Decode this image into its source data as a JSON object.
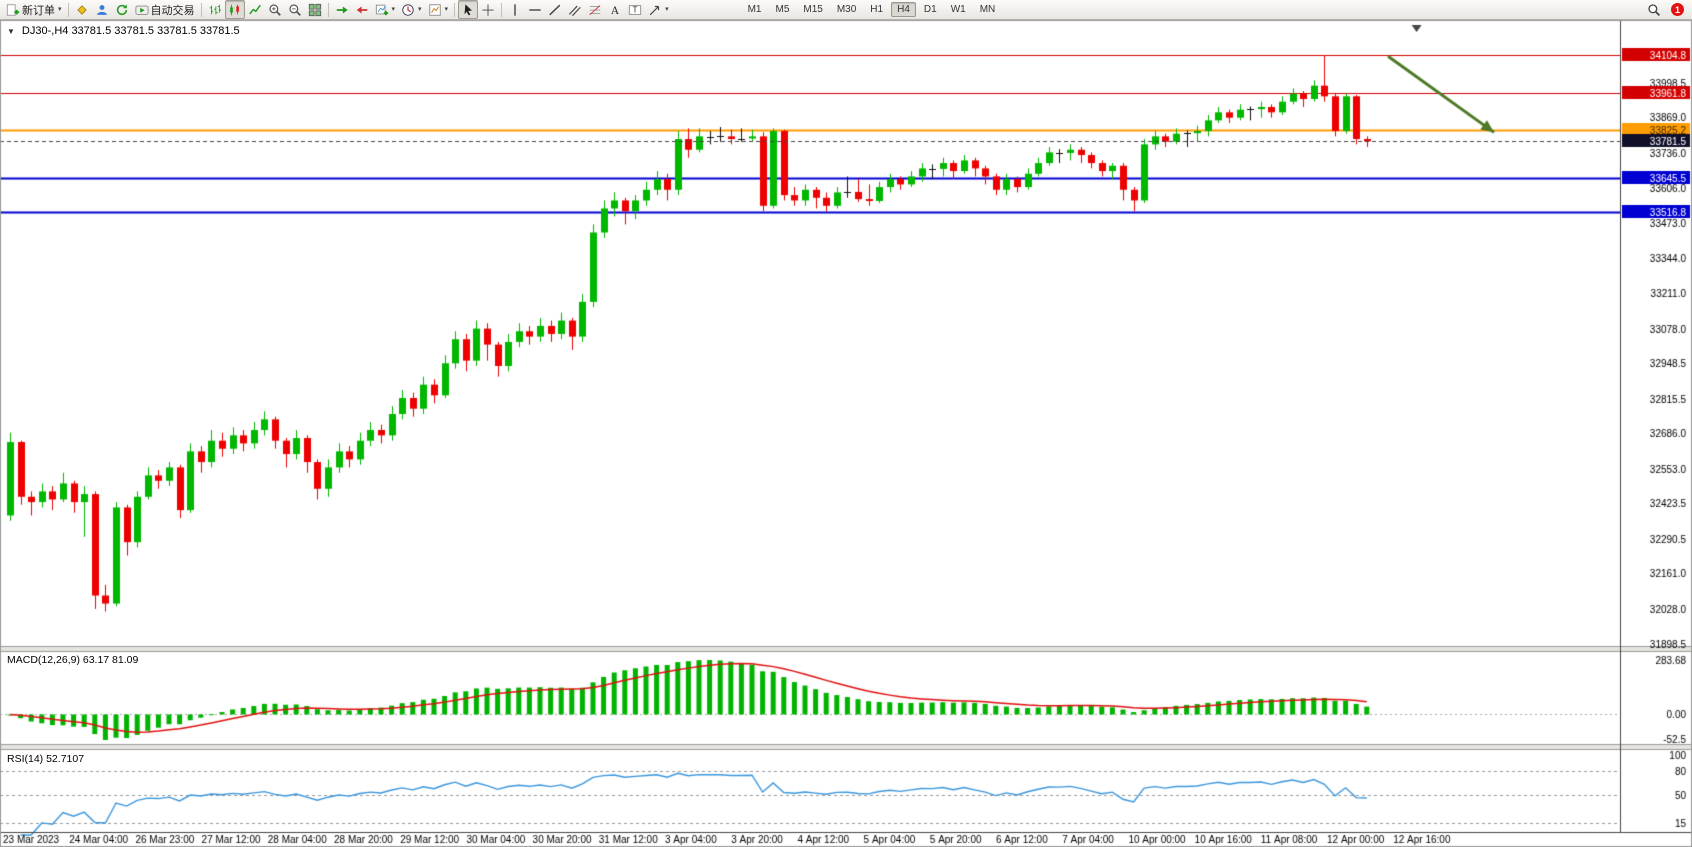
{
  "toolbar": {
    "groups": [
      {
        "items": [
          {
            "name": "new-order-button",
            "icon": "new-order-icon",
            "label": "新订单",
            "dropdown": true
          }
        ]
      },
      {
        "items": [
          {
            "name": "metaeditor-button",
            "icon": "metaeditor-icon"
          },
          {
            "name": "profiles-button",
            "icon": "profiles-icon"
          },
          {
            "name": "refresh-button",
            "icon": "refresh-icon"
          },
          {
            "name": "autotrading-button",
            "icon": "autotrading-icon",
            "label": "自动交易"
          }
        ]
      },
      {
        "items": [
          {
            "name": "bar-chart-button",
            "icon": "bar-chart-icon"
          },
          {
            "name": "candlestick-chart-button",
            "icon": "candlestick-chart-icon",
            "active": true
          },
          {
            "name": "line-chart-button",
            "icon": "line-chart-icon"
          },
          {
            "name": "zoom-in-button",
            "icon": "zoom-in-icon"
          },
          {
            "name": "zoom-out-button",
            "icon": "zoom-out-icon"
          },
          {
            "name": "tile-windows-button",
            "icon": "tile-windows-icon"
          }
        ]
      },
      {
        "items": [
          {
            "name": "auto-scroll-button",
            "icon": "auto-scroll-icon"
          },
          {
            "name": "chart-shift-button",
            "icon": "chart-shift-icon"
          },
          {
            "name": "new-chart-button",
            "icon": "new-chart-icon",
            "dropdown": true
          },
          {
            "name": "periods-button",
            "icon": "period-icon",
            "dropdown": true
          },
          {
            "name": "templates-button",
            "icon": "template-icon",
            "dropdown": true
          }
        ]
      },
      {
        "items": [
          {
            "name": "cursor-button",
            "icon": "cursor-icon",
            "active": true
          },
          {
            "name": "crosshair-button",
            "icon": "crosshair-icon"
          }
        ]
      },
      {
        "items": [
          {
            "name": "vertical-line-button",
            "icon": "vertical-line-icon"
          },
          {
            "name": "horizontal-line-button",
            "icon": "horizontal-line-icon"
          },
          {
            "name": "trendline-button",
            "icon": "trendline-icon"
          },
          {
            "name": "channel-button",
            "icon": "channel-icon"
          },
          {
            "name": "fibonacci-button",
            "icon": "fibonacci-icon"
          },
          {
            "name": "text-button",
            "icon": "text-icon"
          },
          {
            "name": "label-button",
            "icon": "label-icon"
          },
          {
            "name": "shapes-button",
            "icon": "shapes-icon",
            "dropdown": true
          }
        ]
      }
    ],
    "timeframes": [
      {
        "label": "M1"
      },
      {
        "label": "M5"
      },
      {
        "label": "M15"
      },
      {
        "label": "M30"
      },
      {
        "label": "H1"
      },
      {
        "label": "H4",
        "active": true
      },
      {
        "label": "D1"
      },
      {
        "label": "W1"
      },
      {
        "label": "MN"
      }
    ],
    "notification_badge": "1"
  },
  "chart": {
    "collapse_marker": "▼",
    "symbol_header": "DJ30-,H4  33781.5 33781.5 33781.5 33781.5",
    "macd_label": "MACD(12,26,9) 63.17 81.09",
    "rsi_label": "RSI(14) 52.7107"
  },
  "chart_data": {
    "type": "candlestick",
    "symbol": "DJ30-",
    "timeframe": "H4",
    "current_price": 33781.5,
    "bull_color": "#00b800",
    "bear_color": "#ee0000",
    "ylim": [
      31898.5,
      34104.8
    ],
    "price_axis_ticks": [
      33998.5,
      33869.0,
      33736.0,
      33606.0,
      33473.0,
      33344.0,
      33211.0,
      33078.0,
      32948.5,
      32815.5,
      32686.0,
      32553.0,
      32423.5,
      32290.5,
      32161.0,
      32028.0,
      31898.5
    ],
    "level_lines": [
      {
        "price": 34104.8,
        "color": "#d20000",
        "width": 1,
        "label_bg": "#d20000",
        "label_fg": "#ffffff"
      },
      {
        "price": 33961.8,
        "color": "#d20000",
        "width": 1,
        "label_bg": "#d20000",
        "label_fg": "#ffffff"
      },
      {
        "price": 33825.2,
        "color": "#ff9c00",
        "width": 2,
        "label_bg": "#ff9c00",
        "label_fg": "#402c00"
      },
      {
        "price": 33645.5,
        "color": "#0000d2",
        "width": 2,
        "label_bg": "#0000d2",
        "label_fg": "#ffffff"
      },
      {
        "price": 33516.8,
        "color": "#0000d2",
        "width": 2,
        "label_bg": "#0000d2",
        "label_fg": "#ffffff"
      }
    ],
    "current_price_label": {
      "bg": "#10102a",
      "fg": "#ffffff"
    },
    "time_labels": [
      "23 Mar 2023",
      "24 Mar 04:00",
      "26 Mar 23:00",
      "27 Mar 12:00",
      "28 Mar 04:00",
      "28 Mar 20:00",
      "29 Mar 12:00",
      "30 Mar 04:00",
      "30 Mar 20:00",
      "31 Mar 12:00",
      "3 Apr 04:00",
      "3 Apr 20:00",
      "4 Apr 12:00",
      "5 Apr 04:00",
      "5 Apr 20:00",
      "6 Apr 12:00",
      "7 Apr 04:00",
      "10 Apr 00:00",
      "10 Apr 16:00",
      "11 Apr 08:00",
      "12 Apr 00:00",
      "12 Apr 16:00"
    ],
    "ohlc": [
      [
        32380,
        32690,
        32360,
        32655
      ],
      [
        32655,
        32660,
        32420,
        32450
      ],
      [
        32450,
        32470,
        32380,
        32430
      ],
      [
        32430,
        32500,
        32410,
        32470
      ],
      [
        32470,
        32490,
        32400,
        32440
      ],
      [
        32440,
        32540,
        32430,
        32500
      ],
      [
        32500,
        32510,
        32390,
        32430
      ],
      [
        32430,
        32490,
        32300,
        32460
      ],
      [
        32460,
        32470,
        32030,
        32080
      ],
      [
        32080,
        32120,
        32020,
        32050
      ],
      [
        32050,
        32430,
        32040,
        32410
      ],
      [
        32410,
        32420,
        32230,
        32280
      ],
      [
        32280,
        32470,
        32260,
        32450
      ],
      [
        32450,
        32560,
        32440,
        32530
      ],
      [
        32530,
        32550,
        32480,
        32510
      ],
      [
        32510,
        32580,
        32490,
        32560
      ],
      [
        32560,
        32570,
        32370,
        32400
      ],
      [
        32400,
        32650,
        32390,
        32620
      ],
      [
        32620,
        32640,
        32540,
        32580
      ],
      [
        32580,
        32700,
        32560,
        32660
      ],
      [
        32660,
        32690,
        32600,
        32630
      ],
      [
        32630,
        32710,
        32610,
        32680
      ],
      [
        32680,
        32700,
        32620,
        32650
      ],
      [
        32650,
        32730,
        32630,
        32700
      ],
      [
        32700,
        32770,
        32680,
        32740
      ],
      [
        32740,
        32750,
        32630,
        32660
      ],
      [
        32660,
        32670,
        32560,
        32610
      ],
      [
        32610,
        32700,
        32590,
        32670
      ],
      [
        32670,
        32680,
        32540,
        32580
      ],
      [
        32580,
        32590,
        32440,
        32480
      ],
      [
        32480,
        32590,
        32450,
        32560
      ],
      [
        32560,
        32650,
        32540,
        32620
      ],
      [
        32620,
        32640,
        32560,
        32590
      ],
      [
        32590,
        32690,
        32570,
        32660
      ],
      [
        32660,
        32730,
        32640,
        32700
      ],
      [
        32700,
        32720,
        32650,
        32680
      ],
      [
        32680,
        32790,
        32660,
        32760
      ],
      [
        32760,
        32850,
        32740,
        32820
      ],
      [
        32820,
        32840,
        32750,
        32780
      ],
      [
        32780,
        32900,
        32760,
        32870
      ],
      [
        32870,
        32890,
        32800,
        32830
      ],
      [
        32830,
        32980,
        32820,
        32950
      ],
      [
        32950,
        33070,
        32930,
        33040
      ],
      [
        33040,
        33060,
        32920,
        32960
      ],
      [
        32960,
        33110,
        32940,
        33080
      ],
      [
        33080,
        33100,
        32960,
        33020
      ],
      [
        33020,
        33030,
        32900,
        32940
      ],
      [
        32940,
        33060,
        32920,
        33030
      ],
      [
        33030,
        33100,
        33010,
        33070
      ],
      [
        33070,
        33090,
        33020,
        33050
      ],
      [
        33050,
        33120,
        33030,
        33090
      ],
      [
        33090,
        33110,
        33030,
        33060
      ],
      [
        33060,
        33140,
        33040,
        33110
      ],
      [
        33110,
        33120,
        33000,
        33050
      ],
      [
        33050,
        33210,
        33030,
        33180
      ],
      [
        33180,
        33470,
        33160,
        33440
      ],
      [
        33440,
        33560,
        33420,
        33530
      ],
      [
        33530,
        33590,
        33500,
        33560
      ],
      [
        33560,
        33570,
        33470,
        33520
      ],
      [
        33520,
        33580,
        33490,
        33560
      ],
      [
        33560,
        33630,
        33540,
        33600
      ],
      [
        33600,
        33670,
        33580,
        33640
      ],
      [
        33640,
        33660,
        33560,
        33600
      ],
      [
        33600,
        33820,
        33580,
        33790
      ],
      [
        33790,
        33830,
        33720,
        33750
      ],
      [
        33750,
        33830,
        33740,
        33800
      ],
      [
        33800,
        33820,
        33770,
        33798
      ],
      [
        33798,
        33835,
        33780,
        33800
      ],
      [
        33800,
        33825,
        33770,
        33790
      ],
      [
        33790,
        33830,
        33780,
        33792
      ],
      [
        33792,
        33825,
        33780,
        33800
      ],
      [
        33800,
        33815,
        33520,
        33540
      ],
      [
        33540,
        33830,
        33530,
        33820
      ],
      [
        33820,
        33825,
        33560,
        33580
      ],
      [
        33580,
        33610,
        33540,
        33560
      ],
      [
        33560,
        33620,
        33540,
        33600
      ],
      [
        33600,
        33610,
        33530,
        33570
      ],
      [
        33570,
        33590,
        33518,
        33540
      ],
      [
        33540,
        33610,
        33530,
        33590
      ],
      [
        33590,
        33650,
        33570,
        33592
      ],
      [
        33592,
        33640,
        33555,
        33565
      ],
      [
        33565,
        33620,
        33540,
        33558
      ],
      [
        33558,
        33630,
        33550,
        33610
      ],
      [
        33610,
        33660,
        33590,
        33640
      ],
      [
        33640,
        33650,
        33600,
        33620
      ],
      [
        33620,
        33670,
        33610,
        33650
      ],
      [
        33650,
        33700,
        33630,
        33680
      ],
      [
        33680,
        33695,
        33640,
        33678
      ],
      [
        33678,
        33720,
        33650,
        33700
      ],
      [
        33700,
        33710,
        33640,
        33670
      ],
      [
        33670,
        33730,
        33660,
        33710
      ],
      [
        33710,
        33720,
        33650,
        33680
      ],
      [
        33680,
        33690,
        33620,
        33650
      ],
      [
        33650,
        33660,
        33580,
        33600
      ],
      [
        33600,
        33660,
        33580,
        33640
      ],
      [
        33640,
        33650,
        33590,
        33610
      ],
      [
        33610,
        33680,
        33600,
        33660
      ],
      [
        33660,
        33720,
        33650,
        33700
      ],
      [
        33700,
        33760,
        33690,
        33740
      ],
      [
        33740,
        33752,
        33700,
        33738
      ],
      [
        33738,
        33770,
        33710,
        33750
      ],
      [
        33750,
        33760,
        33700,
        33730
      ],
      [
        33730,
        33740,
        33680,
        33700
      ],
      [
        33700,
        33710,
        33650,
        33670
      ],
      [
        33670,
        33700,
        33640,
        33690
      ],
      [
        33690,
        33700,
        33560,
        33600
      ],
      [
        33600,
        33610,
        33520,
        33560
      ],
      [
        33560,
        33790,
        33550,
        33770
      ],
      [
        33770,
        33820,
        33750,
        33800
      ],
      [
        33800,
        33810,
        33760,
        33780
      ],
      [
        33780,
        33830,
        33770,
        33810
      ],
      [
        33810,
        33822,
        33760,
        33812
      ],
      [
        33812,
        33840,
        33780,
        33820
      ],
      [
        33820,
        33880,
        33800,
        33860
      ],
      [
        33860,
        33910,
        33850,
        33890
      ],
      [
        33890,
        33900,
        33850,
        33870
      ],
      [
        33870,
        33920,
        33860,
        33900
      ],
      [
        33900,
        33912,
        33860,
        33902
      ],
      [
        33902,
        33930,
        33870,
        33910
      ],
      [
        33910,
        33920,
        33870,
        33890
      ],
      [
        33890,
        33950,
        33880,
        33930
      ],
      [
        33930,
        33980,
        33920,
        33960
      ],
      [
        33960,
        33970,
        33910,
        33940
      ],
      [
        33940,
        34010,
        33930,
        33990
      ],
      [
        33990,
        34104.8,
        33930,
        33950
      ],
      [
        33950,
        33960,
        33800,
        33820
      ],
      [
        33820,
        33960,
        33810,
        33950
      ],
      [
        33950,
        33955,
        33770,
        33790
      ],
      [
        33790,
        33800,
        33760,
        33781.5
      ]
    ],
    "indicators": {
      "macd": {
        "label": "MACD(12,26,9) 63.17 81.09",
        "params": [
          12,
          26,
          9
        ],
        "ticks": [
          "283.68",
          "0.00",
          "-52.5"
        ],
        "histogram_color": "#00b300",
        "signal_color": "#e01010"
      },
      "rsi": {
        "label": "RSI(14) 52.7107",
        "params": [
          14
        ],
        "ticks": [
          "100",
          "80",
          "50",
          "15"
        ],
        "levels": [
          80,
          50,
          15
        ],
        "line_color": "#3a96dd"
      }
    },
    "annotation_arrow": {
      "from_index": 130,
      "from_price": 34100,
      "to_index": 140,
      "to_price": 33815,
      "color": "#4e7a28"
    },
    "shift_marker_index": 132.7
  }
}
